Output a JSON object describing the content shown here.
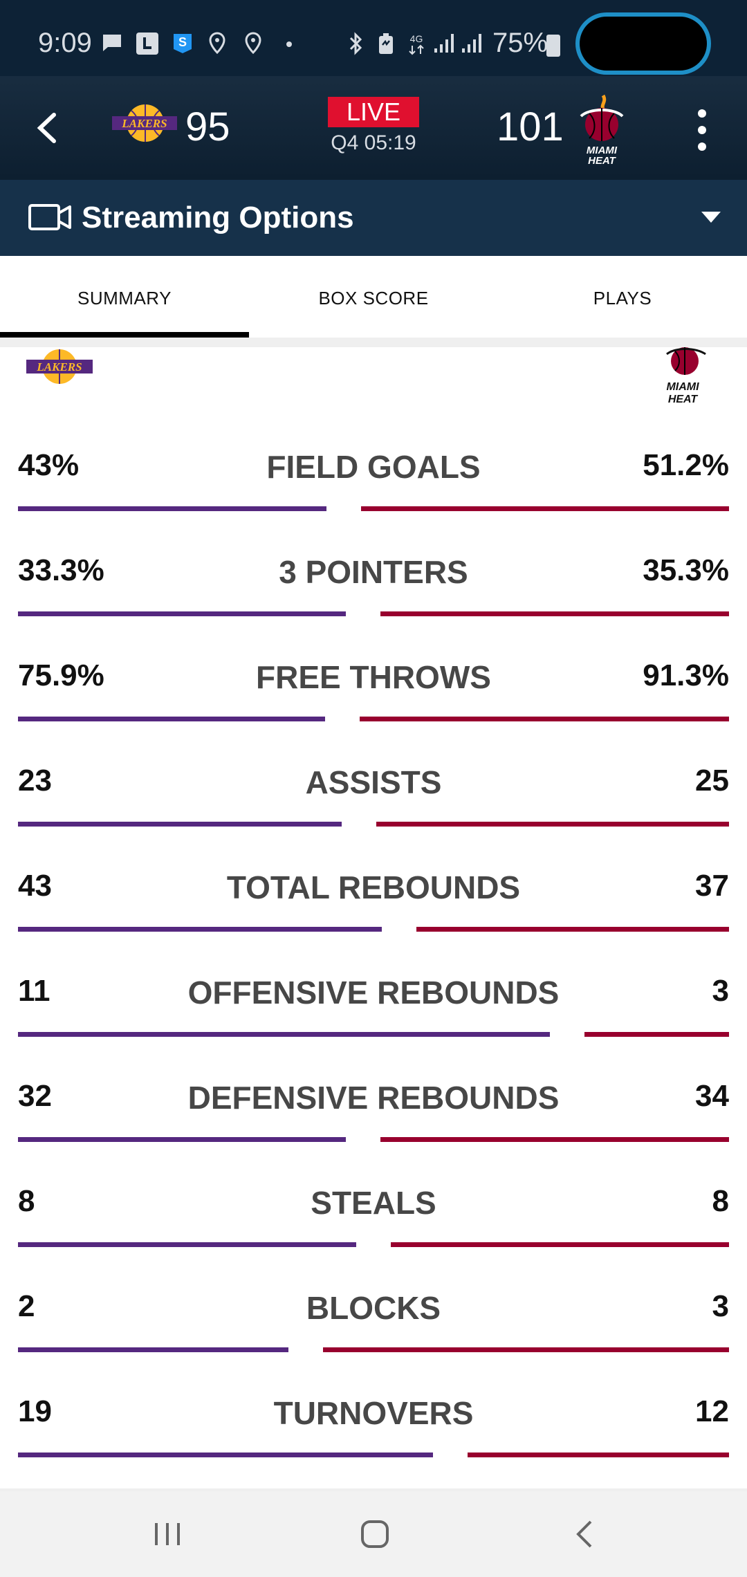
{
  "status_bar": {
    "time": "9:09",
    "battery": "75%",
    "icons": [
      "message-icon",
      "l-app-icon",
      "s-app-icon",
      "location-icon",
      "location-icon",
      "dot-icon",
      "bluetooth-icon",
      "battery-saver-icon",
      "4g-icon",
      "signal-icon",
      "signal-icon"
    ]
  },
  "header": {
    "away_team_logo_text": "LAKERS",
    "away_score": "95",
    "live_label": "LIVE",
    "clock": "Q4 05:19",
    "home_score": "101",
    "home_team_logo_text": "MIAMI HEAT"
  },
  "streaming": {
    "label": "Streaming Options"
  },
  "tabs": [
    {
      "label": "SUMMARY",
      "active": true
    },
    {
      "label": "BOX SCORE",
      "active": false
    },
    {
      "label": "PLAYS",
      "active": false
    }
  ],
  "colors": {
    "away": "#55287f",
    "home": "#98002e",
    "live": "#e0102f"
  },
  "stats": [
    {
      "label": "FIELD GOALS",
      "away": "43%",
      "home": "51.2%",
      "away_share": 0.456
    },
    {
      "label": "3 POINTERS",
      "away": "33.3%",
      "home": "35.3%",
      "away_share": 0.485
    },
    {
      "label": "FREE THROWS",
      "away": "75.9%",
      "home": "91.3%",
      "away_share": 0.454
    },
    {
      "label": "ASSISTS",
      "away": "23",
      "home": "25",
      "away_share": 0.479
    },
    {
      "label": "TOTAL REBOUNDS",
      "away": "43",
      "home": "37",
      "away_share": 0.538
    },
    {
      "label": "OFFENSIVE REBOUNDS",
      "away": "11",
      "home": "3",
      "away_share": 0.786
    },
    {
      "label": "DEFENSIVE REBOUNDS",
      "away": "32",
      "home": "34",
      "away_share": 0.485
    },
    {
      "label": "STEALS",
      "away": "8",
      "home": "8",
      "away_share": 0.5
    },
    {
      "label": "BLOCKS",
      "away": "2",
      "home": "3",
      "away_share": 0.4
    },
    {
      "label": "TURNOVERS",
      "away": "19",
      "home": "12",
      "away_share": 0.613
    }
  ]
}
